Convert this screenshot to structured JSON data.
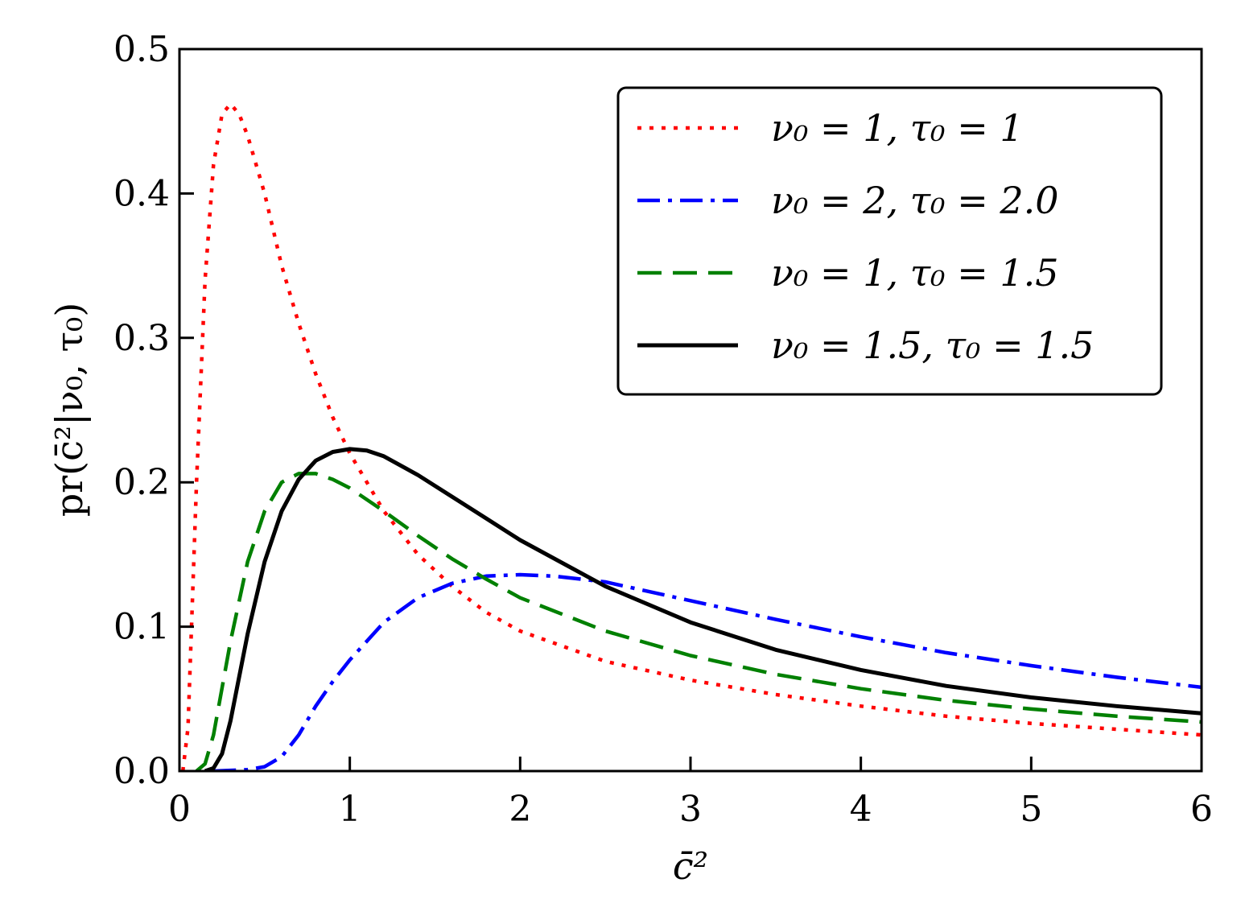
{
  "chart_data": {
    "type": "line",
    "title": "",
    "xlabel": "c̄²",
    "ylabel": "pr(c̄²|ν₀, τ₀)",
    "xlim": [
      0,
      6
    ],
    "ylim": [
      0,
      0.5
    ],
    "xticks": [
      "0",
      "1",
      "2",
      "3",
      "4",
      "5",
      "6"
    ],
    "yticks": [
      "0.0",
      "0.1",
      "0.2",
      "0.3",
      "0.4",
      "0.5"
    ],
    "grid": false,
    "legend_position": "top-right",
    "series": [
      {
        "name": "ν₀ = 1, τ₀ = 1",
        "color": "#ff0000",
        "style": "dotted",
        "x": [
          0.02,
          0.05,
          0.1,
          0.15,
          0.2,
          0.25,
          0.3,
          0.35,
          0.4,
          0.5,
          0.6,
          0.7,
          0.8,
          0.9,
          1.0,
          1.2,
          1.4,
          1.6,
          1.8,
          2.0,
          2.5,
          3.0,
          3.5,
          4.0,
          4.5,
          5.0,
          5.5,
          6.0
        ],
        "values": [
          0.0,
          0.03,
          0.2,
          0.34,
          0.42,
          0.455,
          0.462,
          0.455,
          0.44,
          0.4,
          0.35,
          0.31,
          0.275,
          0.245,
          0.22,
          0.18,
          0.15,
          0.128,
          0.11,
          0.097,
          0.076,
          0.063,
          0.053,
          0.045,
          0.038,
          0.033,
          0.029,
          0.025
        ]
      },
      {
        "name": "ν₀ = 2, τ₀ = 2.0",
        "color": "#0000ff",
        "style": "dashdot",
        "x": [
          0.2,
          0.4,
          0.5,
          0.6,
          0.7,
          0.8,
          0.9,
          1.0,
          1.2,
          1.4,
          1.6,
          1.8,
          2.0,
          2.2,
          2.5,
          3.0,
          3.5,
          4.0,
          4.5,
          5.0,
          5.5,
          6.0
        ],
        "values": [
          0.0,
          0.001,
          0.003,
          0.01,
          0.025,
          0.045,
          0.062,
          0.077,
          0.103,
          0.12,
          0.13,
          0.135,
          0.136,
          0.135,
          0.131,
          0.118,
          0.105,
          0.093,
          0.082,
          0.073,
          0.065,
          0.058
        ]
      },
      {
        "name": "ν₀ = 1, τ₀ = 1.5",
        "color": "#008000",
        "style": "dashed",
        "x": [
          0.1,
          0.15,
          0.2,
          0.3,
          0.4,
          0.5,
          0.6,
          0.7,
          0.8,
          0.9,
          1.0,
          1.2,
          1.4,
          1.6,
          1.8,
          2.0,
          2.5,
          3.0,
          3.5,
          4.0,
          4.5,
          5.0,
          5.5,
          6.0
        ],
        "values": [
          0.0,
          0.005,
          0.025,
          0.09,
          0.145,
          0.18,
          0.2,
          0.206,
          0.206,
          0.202,
          0.196,
          0.18,
          0.163,
          0.147,
          0.133,
          0.12,
          0.097,
          0.08,
          0.067,
          0.057,
          0.049,
          0.043,
          0.038,
          0.034
        ]
      },
      {
        "name": "ν₀ = 1.5, τ₀ = 1.5",
        "color": "#000000",
        "style": "solid",
        "x": [
          0.15,
          0.2,
          0.25,
          0.3,
          0.4,
          0.5,
          0.6,
          0.7,
          0.8,
          0.9,
          1.0,
          1.1,
          1.2,
          1.4,
          1.6,
          1.8,
          2.0,
          2.5,
          3.0,
          3.5,
          4.0,
          4.5,
          5.0,
          5.5,
          6.0
        ],
        "values": [
          0.0,
          0.002,
          0.012,
          0.035,
          0.095,
          0.145,
          0.18,
          0.202,
          0.215,
          0.221,
          0.223,
          0.222,
          0.218,
          0.205,
          0.19,
          0.175,
          0.16,
          0.128,
          0.103,
          0.084,
          0.07,
          0.059,
          0.051,
          0.045,
          0.04
        ]
      }
    ]
  }
}
